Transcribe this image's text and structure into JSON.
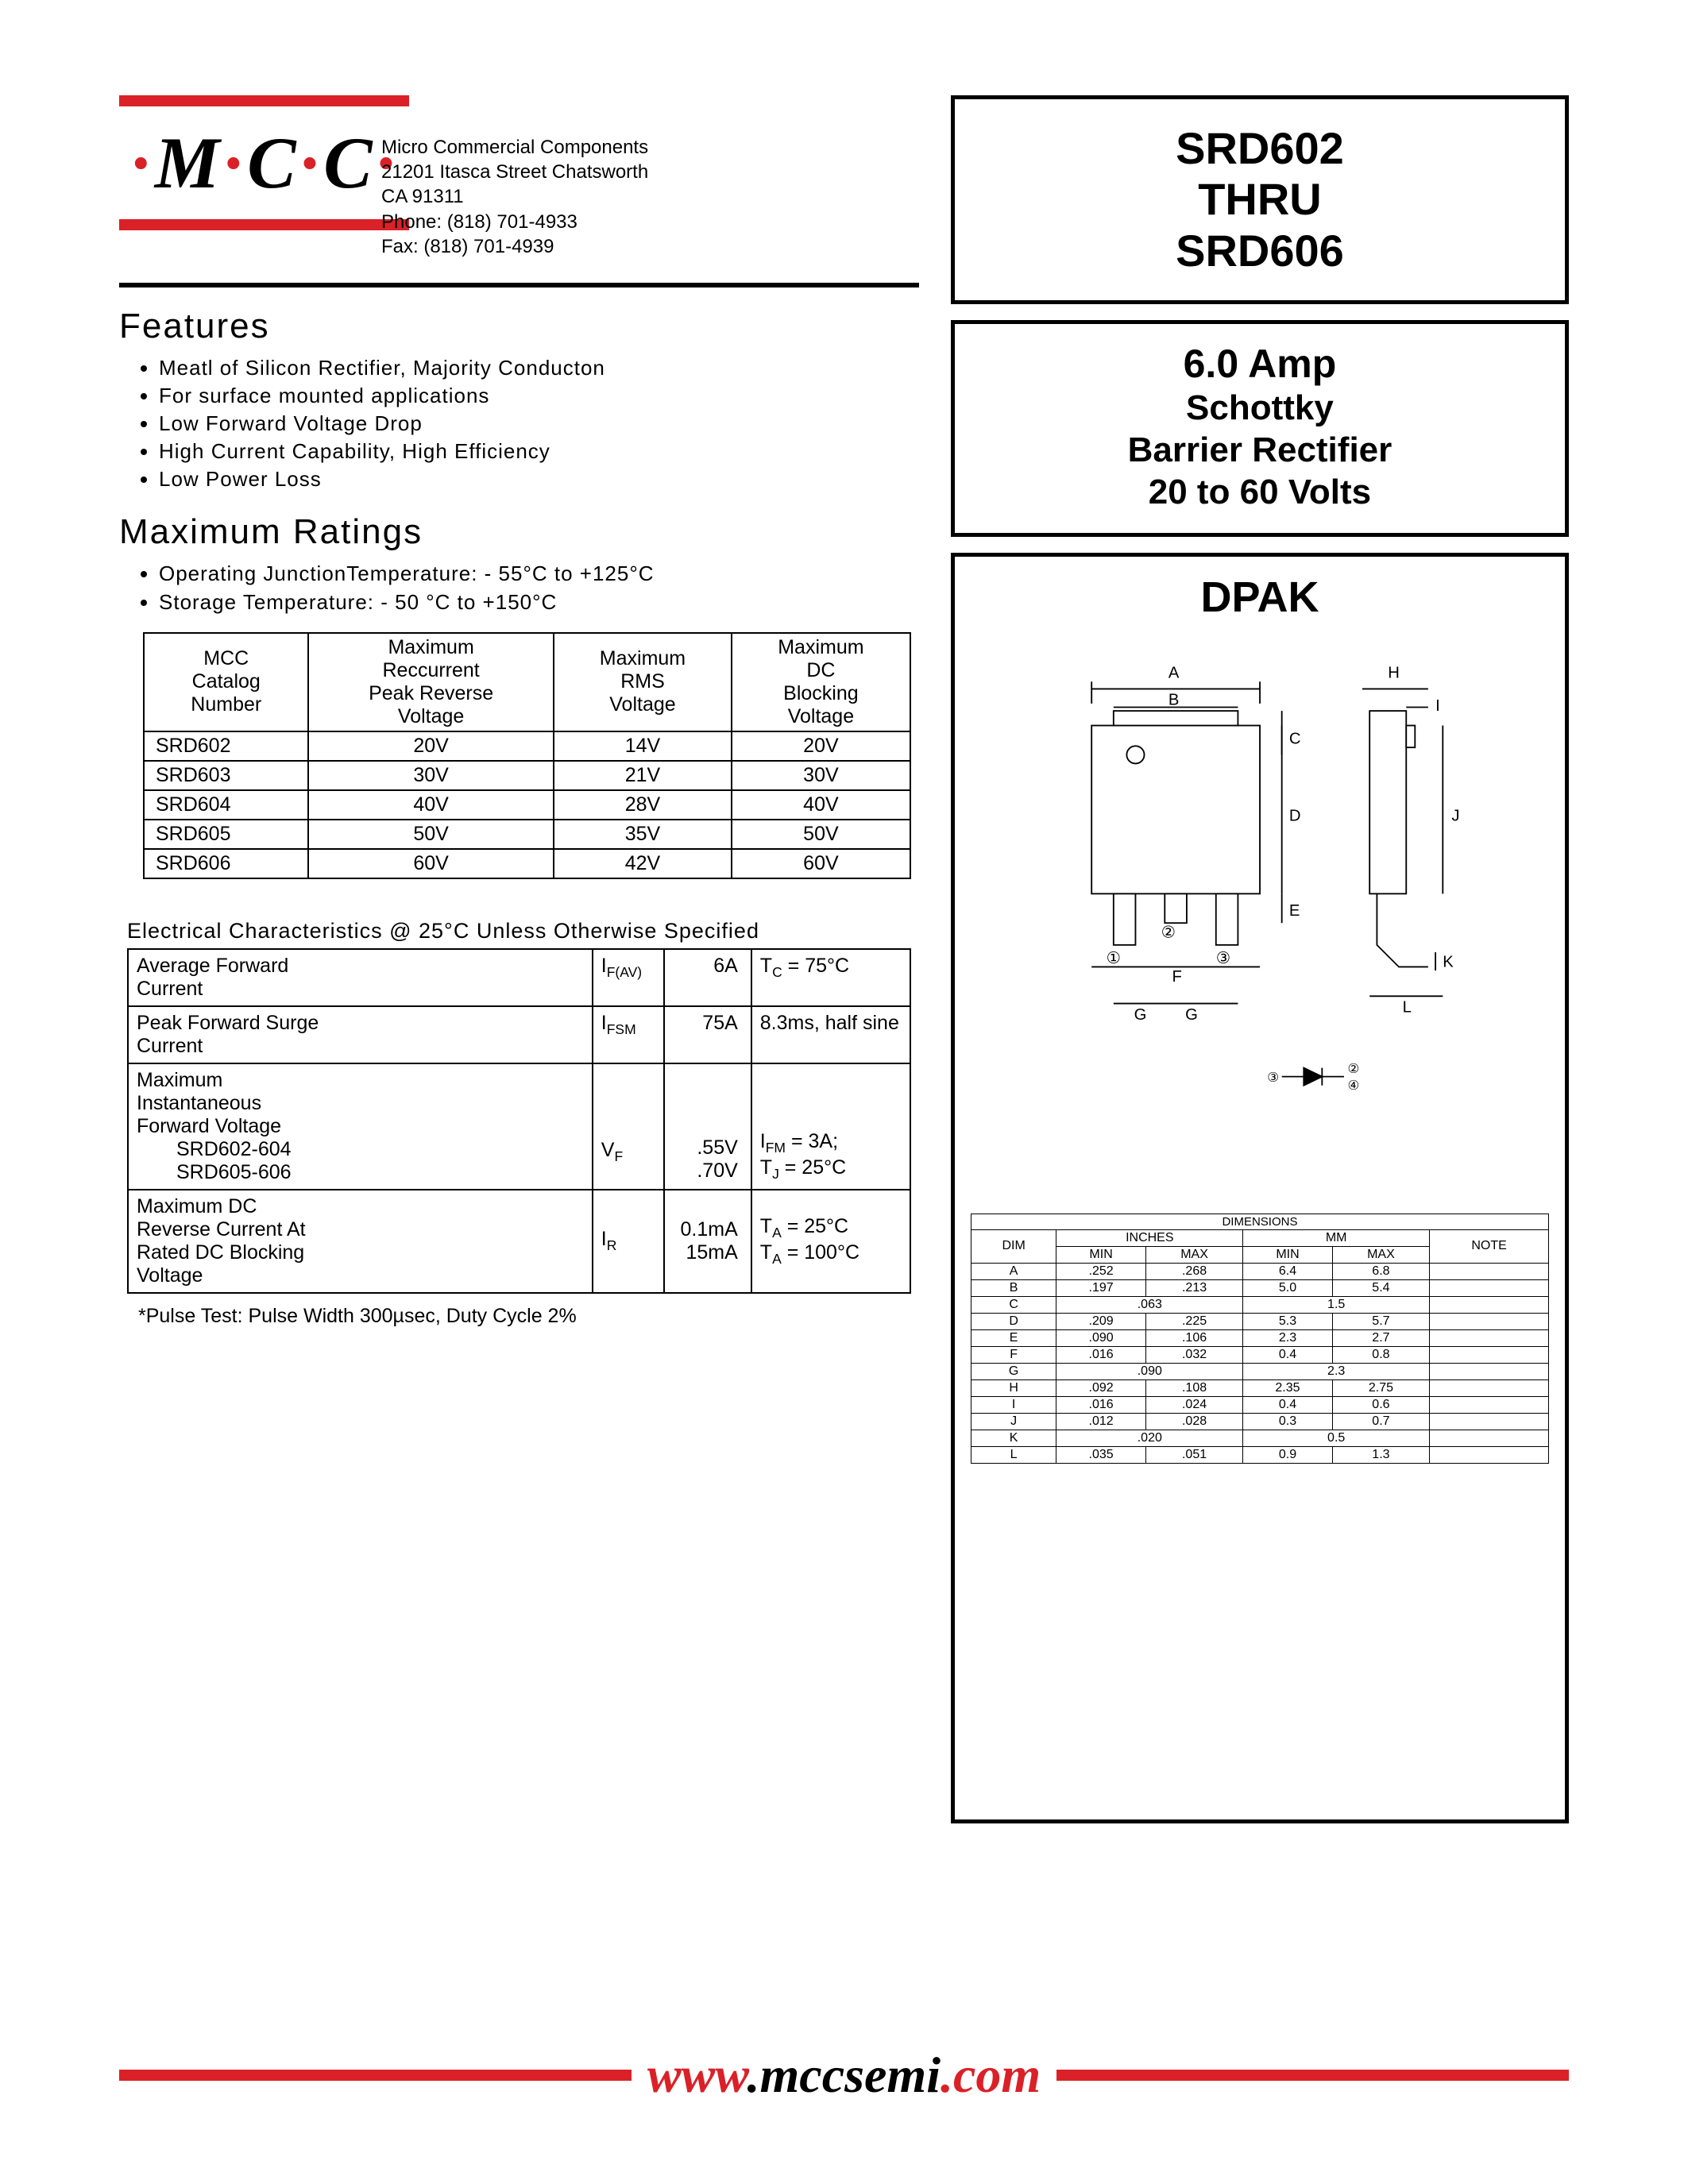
{
  "logo": {
    "text": "M·C·C",
    "dot_color": "#da2128"
  },
  "company": {
    "name": "Micro Commercial Components",
    "address1": "21201 Itasca Street Chatsworth",
    "address2": "CA 91311",
    "phone": "Phone: (818) 701-4933",
    "fax": "Fax:     (818) 701-4939"
  },
  "title_box": {
    "l1": "SRD602",
    "l2": "THRU",
    "l3": "SRD606"
  },
  "desc_box": {
    "amp": "6.0 Amp",
    "l1": "Schottky",
    "l2": "Barrier Rectifier",
    "l3": "20 to 60 Volts"
  },
  "features": {
    "title": "Features",
    "items": [
      "Meatl of Silicon Rectifier, Majority Conducton",
      "For surface mounted applications",
      "Low Forward Voltage Drop",
      "High Current Capability, High Efficiency",
      "Low Power Loss"
    ]
  },
  "ratings": {
    "title": "Maximum Ratings",
    "bullets": [
      "Operating JunctionTemperature: - 55°C to +125°C",
      "Storage Temperature: - 50 °C  to +150°C"
    ],
    "headers": [
      "MCC Catalog Number",
      "Maximum Reccurrent Peak Reverse Voltage",
      "Maximum RMS Voltage",
      "Maximum DC Blocking Voltage"
    ],
    "rows": [
      [
        "SRD602",
        "20V",
        "14V",
        "20V"
      ],
      [
        "SRD603",
        "30V",
        "21V",
        "30V"
      ],
      [
        "SRD604",
        "40V",
        "28V",
        "40V"
      ],
      [
        "SRD605",
        "50V",
        "35V",
        "50V"
      ],
      [
        "SRD606",
        "60V",
        "42V",
        "60V"
      ]
    ]
  },
  "elec": {
    "title": "Electrical Characteristics @ 25°C Unless Otherwise Specified",
    "rows": [
      {
        "param": "Average Forward Current",
        "sym": "I",
        "sub": "F(AV)",
        "val": "6A",
        "cond": "T<sub>C</sub> = 75°C"
      },
      {
        "param": "Peak Forward Surge Current",
        "sym": "I",
        "sub": "FSM",
        "val": "75A",
        "cond": "8.3ms, half sine"
      },
      {
        "param": "Maximum Instantaneous Forward Voltage<br><span class='indent'>SRD602-604</span><span class='indent'>SRD605-606</span>",
        "sym": "V",
        "sub": "F",
        "val": ".55V<br>.70V",
        "cond": "I<sub>FM</sub> = 3A;<br>T<sub>J</sub> = 25°C"
      },
      {
        "param": "Maximum DC Reverse Current At Rated DC Blocking Voltage",
        "sym": "I",
        "sub": "R",
        "val": "0.1mA<br>15mA",
        "cond": "T<sub>A</sub> = 25°C<br>T<sub>A</sub> = 100°C"
      }
    ],
    "footnote": "*Pulse Test: Pulse Width 300µsec, Duty Cycle 2%"
  },
  "package": {
    "title": "DPAK",
    "dim_header": "DIMENSIONS",
    "units": [
      "INCHES",
      "MM"
    ],
    "cols": [
      "DIM",
      "MIN",
      "MAX",
      "MIN",
      "MAX",
      "NOTE"
    ],
    "rows": [
      [
        "A",
        ".252",
        ".268",
        "6.4",
        "6.8",
        ""
      ],
      [
        "B",
        ".197",
        ".213",
        "5.0",
        "5.4",
        ""
      ],
      [
        "C",
        ".063",
        "",
        "1.5",
        "",
        ""
      ],
      [
        "D",
        ".209",
        ".225",
        "5.3",
        "5.7",
        ""
      ],
      [
        "E",
        ".090",
        ".106",
        "2.3",
        "2.7",
        ""
      ],
      [
        "F",
        ".016",
        ".032",
        "0.4",
        "0.8",
        ""
      ],
      [
        "G",
        ".090",
        "",
        "2.3",
        "",
        ""
      ],
      [
        "H",
        ".092",
        ".108",
        "2.35",
        "2.75",
        ""
      ],
      [
        "I",
        ".016",
        ".024",
        "0.4",
        "0.6",
        ""
      ],
      [
        "J",
        ".012",
        ".028",
        "0.3",
        "0.7",
        ""
      ],
      [
        "K",
        ".020",
        "",
        "0.5",
        "",
        ""
      ],
      [
        "L",
        ".035",
        ".051",
        "0.9",
        "1.3",
        ""
      ]
    ],
    "drawing": {
      "labels": [
        "A",
        "B",
        "C",
        "D",
        "E",
        "F",
        "G",
        "H",
        "I",
        "J",
        "K",
        "L"
      ],
      "pins": [
        "①",
        "②",
        "③",
        "④"
      ],
      "stroke": "#000000",
      "fill": "#ffffff"
    }
  },
  "footer": {
    "url_www": "www",
    "url_mid": ".mccsemi",
    "url_com": ".com"
  }
}
